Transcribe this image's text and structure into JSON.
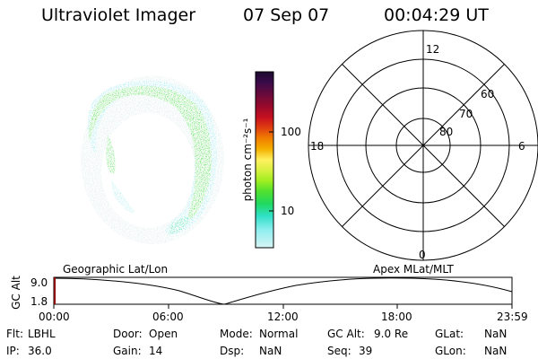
{
  "header": {
    "instrument": "Ultraviolet Imager",
    "date": "07 Sep 07",
    "time": "00:04:29 UT"
  },
  "colorbar": {
    "label": "photon cm⁻²s⁻¹",
    "ticks": [
      "100",
      "10"
    ],
    "colors": [
      "#1a0a2e",
      "#3a0a4a",
      "#6a0a3a",
      "#9a0a2a",
      "#c81020",
      "#e04010",
      "#f08000",
      "#f4b000",
      "#fff060",
      "#d8f040",
      "#a0ee20",
      "#50e030",
      "#20d860",
      "#30e0c8",
      "#90eef0",
      "#d8f4f4"
    ]
  },
  "polar": {
    "mlt_labels": [
      "12",
      "18",
      "6",
      "0"
    ],
    "lat_labels": [
      "60",
      "70",
      "80"
    ]
  },
  "timeline": {
    "left_label": "Geographic Lat/Lon",
    "right_label": "Apex MLat/MLT",
    "axis_title": "GC Alt",
    "y_ticks": [
      "9.0",
      "1.8"
    ],
    "x_ticks": [
      "00:00",
      "06:00",
      "12:00",
      "18:00",
      "23:59"
    ],
    "marker_color": "#8b0000"
  },
  "status": {
    "row1": [
      {
        "key": "Flt:",
        "val": "LBHL"
      },
      {
        "key": "Door:",
        "val": "Open"
      },
      {
        "key": "Mode:",
        "val": "Normal"
      },
      {
        "key": "GC Alt:",
        "val": "9.0 Re"
      },
      {
        "key": "GLat:",
        "val": "NaN"
      }
    ],
    "row2": [
      {
        "key": "IP:",
        "val": "36.0"
      },
      {
        "key": "Gain:",
        "val": "14"
      },
      {
        "key": "Dsp:",
        "val": "NaN"
      },
      {
        "key": "Seq:",
        "val": "39"
      },
      {
        "key": "GLon:",
        "val": "NaN"
      }
    ]
  }
}
